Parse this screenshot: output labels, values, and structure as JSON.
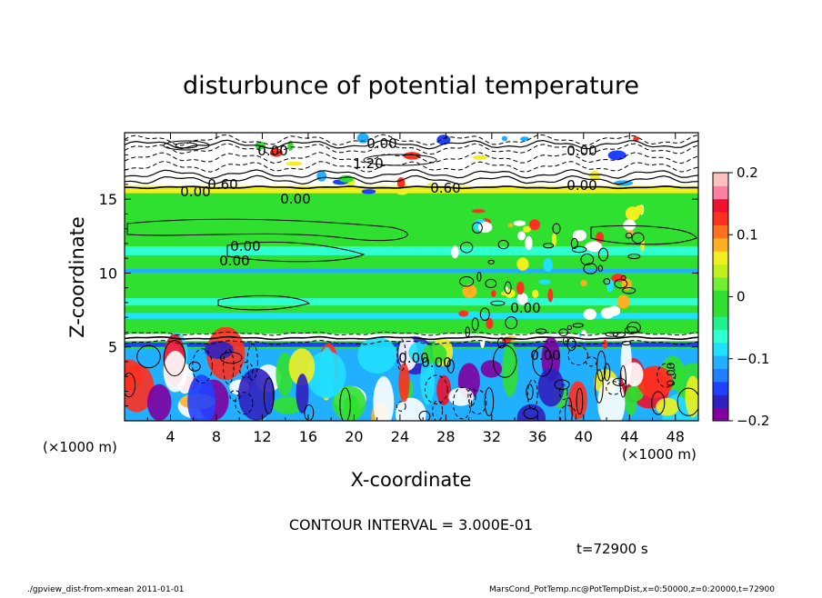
{
  "chart_data": {
    "type": "heatmap",
    "title": "disturbunce of potential temperature",
    "xlabel": "X-coordinate",
    "ylabel": "Z-coordinate",
    "x_unit_left": "(×1000 m)",
    "x_unit_right": "(×1000 m)",
    "xlim": [
      0,
      50
    ],
    "ylim": [
      0,
      19.5
    ],
    "x_ticks": [
      4,
      8,
      12,
      16,
      20,
      24,
      28,
      32,
      36,
      40,
      44,
      48
    ],
    "y_ticks": [
      5,
      10,
      15
    ],
    "colorbar": {
      "range": [
        -0.2,
        0.2
      ],
      "tick_values": [
        0.2,
        0.1,
        0,
        -0.1,
        -0.2
      ],
      "tick_labels": [
        "0.2",
        "0.1",
        "0",
        "−0.1",
        "−0.2"
      ],
      "colors": [
        "#8000a0",
        "#3020c0",
        "#2040ff",
        "#2080ff",
        "#20b0ff",
        "#20e0ff",
        "#30ffd0",
        "#20f090",
        "#30e030",
        "#30e030",
        "#70f030",
        "#c0f020",
        "#f0f020",
        "#ffb020",
        "#ff7020",
        "#ff3020",
        "#f01030",
        "#ff80a0",
        "#ffc0c0"
      ]
    },
    "contour_labels": [
      "0.00",
      "0.00",
      "0.00",
      "0.00",
      "0.00",
      "0.00",
      "0.00",
      "0.00",
      "0.00",
      "0.00",
      "0.60",
      "0.60",
      "1.20",
      "0.00",
      "0.00",
      "0.00"
    ],
    "contour_interval_text": "CONTOUR INTERVAL = 3.000E-01",
    "time_text": "t=72900 s"
  },
  "footer": {
    "left": "./gpview_dist-from-xmean  2011-01-01",
    "right": "MarsCond_PotTemp.nc@PotTempDist,x=0:50000,z=0:20000,t=72900"
  }
}
